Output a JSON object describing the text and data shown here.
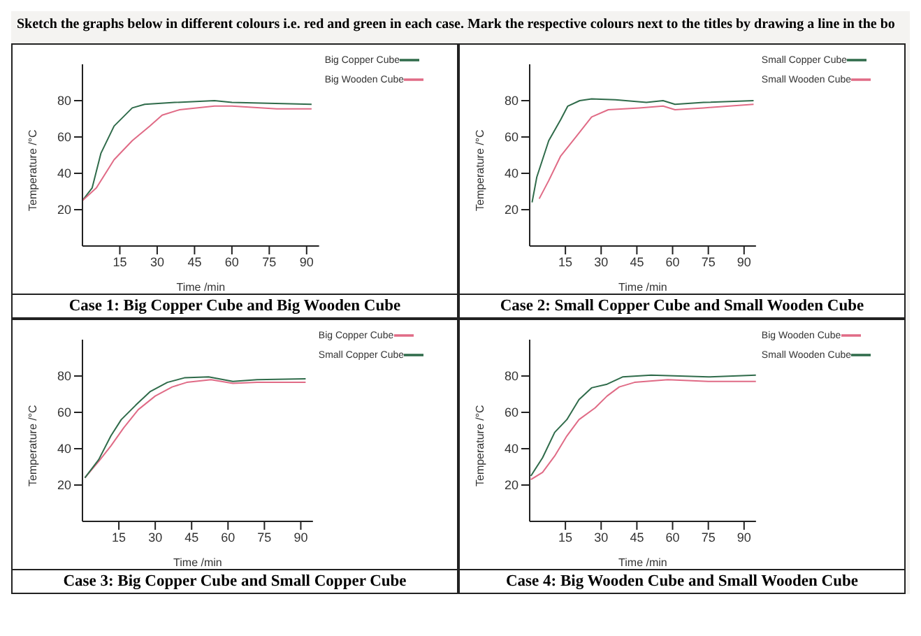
{
  "chart_data": [
    {
      "type": "line",
      "title": "Case 1: Big Copper Cube and Big Wooden Cube",
      "xlabel": "Time /min",
      "ylabel": "Temperature /°C",
      "annotations": [
        "Sketch the graphs below in different colours i.e. red and green in each case. Mark the respective colours next to the titles by drawing a line in the bo"
      ],
      "xlim": [
        0,
        95
      ],
      "xticks": [
        15,
        30,
        45,
        60,
        75,
        90
      ],
      "ylim": [
        0,
        100
      ],
      "yticks": [
        20,
        40,
        60,
        80
      ],
      "legend": "top right",
      "series": [
        {
          "name": "Big Copper Cube",
          "color": "#2f6b4a",
          "x": [
            0,
            3.9,
            7.4,
            12.7,
            20,
            25,
            37,
            53,
            60,
            92
          ],
          "values": [
            25,
            32,
            51,
            66,
            76,
            78,
            79,
            80,
            79,
            78
          ]
        },
        {
          "name": "Big Wooden Cube",
          "color": "#e06b86",
          "x": [
            0,
            5.6,
            12.7,
            20,
            27,
            32,
            39,
            53,
            60,
            78,
            92
          ],
          "values": [
            25,
            32,
            47.5,
            58,
            66,
            72,
            75,
            77,
            77,
            75.5,
            75.5
          ]
        }
      ]
    },
    {
      "type": "line",
      "title": "Case 2: Small Copper Cube and Small Wooden Cube",
      "xlabel": "Time /min",
      "ylabel": "Temperature /°C",
      "xlim": [
        0,
        95
      ],
      "xticks": [
        15,
        30,
        45,
        60,
        75,
        90
      ],
      "ylim": [
        0,
        100
      ],
      "yticks": [
        20,
        40,
        60,
        80
      ],
      "legend": "top right",
      "series": [
        {
          "name": "Small Copper Cube",
          "color": "#2f6b4a",
          "x": [
            1,
            3,
            8,
            13,
            16,
            21,
            26,
            36,
            49,
            56,
            61,
            73,
            94
          ],
          "values": [
            24,
            38,
            58,
            69.5,
            77,
            80,
            81,
            80.5,
            79,
            80,
            78,
            79,
            80
          ]
        },
        {
          "name": "Small Wooden Cube",
          "color": "#e06b86",
          "x": [
            4,
            8,
            13,
            20,
            26,
            33,
            46,
            56,
            61,
            73,
            94
          ],
          "values": [
            26,
            36,
            49.5,
            61,
            71,
            75,
            76,
            77,
            75,
            76,
            78
          ]
        }
      ]
    },
    {
      "type": "line",
      "title": "Case 3: Big Copper Cube and Small Copper Cube",
      "xlabel": "Time /min",
      "ylabel": "Temperature /°C",
      "xlim": [
        0,
        95
      ],
      "xticks": [
        15,
        30,
        45,
        60,
        75,
        90
      ],
      "ylim": [
        0,
        100
      ],
      "yticks": [
        20,
        40,
        60,
        80
      ],
      "legend": "top right",
      "series": [
        {
          "name": "Big Copper Cube",
          "color": "#e06b86",
          "x": [
            1,
            6.7,
            11.7,
            17,
            23,
            30,
            37,
            43,
            53,
            62,
            72,
            92
          ],
          "values": [
            24,
            33,
            41.5,
            51.5,
            61.5,
            69,
            74,
            76.5,
            78,
            76,
            76.5,
            76.5
          ]
        },
        {
          "name": "Small Copper Cube",
          "color": "#2f6b4a",
          "x": [
            1,
            6.7,
            11.7,
            16,
            22,
            28,
            35,
            42,
            52,
            62,
            72,
            92
          ],
          "values": [
            24,
            34,
            47,
            56,
            64,
            71.5,
            76.5,
            79,
            79.5,
            77,
            78,
            78.5
          ]
        }
      ]
    },
    {
      "type": "line",
      "title": "Case 4: Big Wooden Cube and Small Wooden Cube",
      "xlabel": "Time /min",
      "ylabel": "Temperature /°C",
      "xlim": [
        0,
        95
      ],
      "xticks": [
        15,
        30,
        45,
        60,
        75,
        90
      ],
      "ylim": [
        0,
        100
      ],
      "yticks": [
        20,
        40,
        60,
        80
      ],
      "legend": "top right",
      "series": [
        {
          "name": "Big Wooden Cube",
          "color": "#e06b86",
          "x": [
            0.5,
            5.4,
            10.5,
            15.6,
            20.7,
            27.5,
            32.5,
            37.6,
            44,
            58,
            75,
            95
          ],
          "values": [
            23,
            27,
            36,
            47,
            56,
            62.5,
            69,
            74,
            76.5,
            78,
            77,
            77
          ]
        },
        {
          "name": "Small Wooden Cube",
          "color": "#2f6b4a",
          "x": [
            0.5,
            5.4,
            10.5,
            15.6,
            20.7,
            26,
            32.5,
            39,
            51,
            75,
            95
          ],
          "values": [
            25,
            35,
            49,
            56,
            67,
            73.5,
            75.5,
            79.5,
            80.5,
            79.5,
            80.5
          ]
        }
      ]
    }
  ]
}
